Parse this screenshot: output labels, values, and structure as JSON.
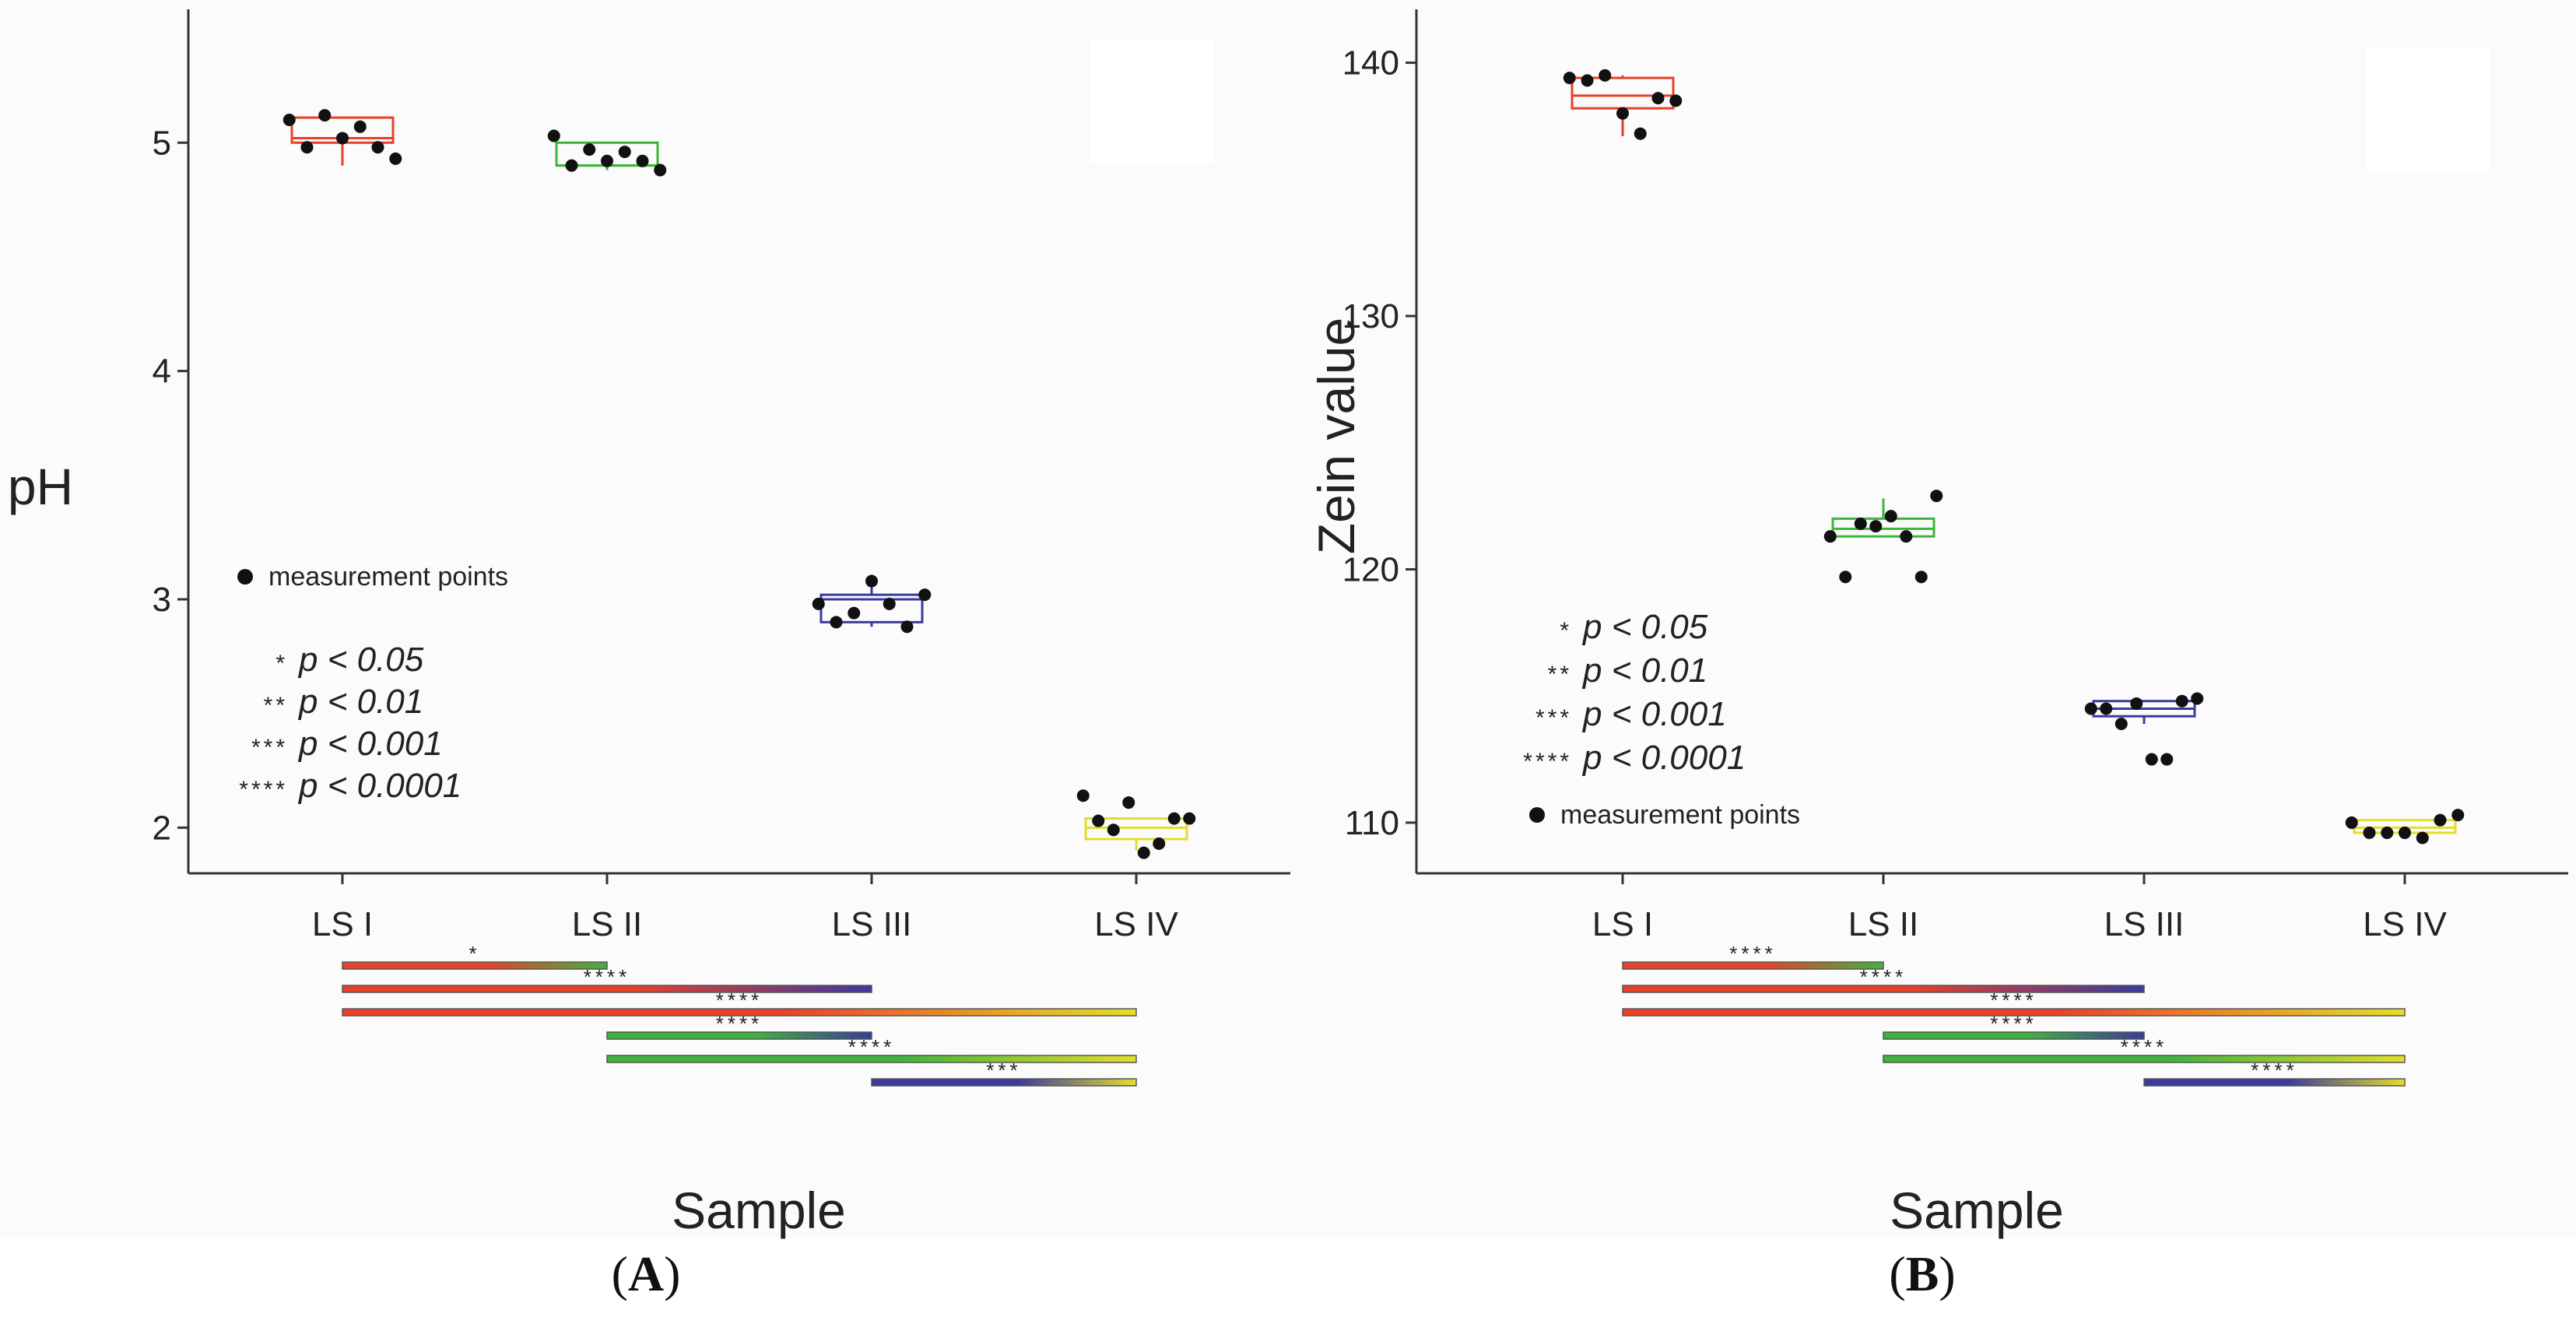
{
  "chart_data": [
    {
      "type": "box",
      "panel": "A",
      "xlabel": "Sample",
      "ylabel": "pH",
      "categories": [
        "LS I",
        "LS II",
        "LS III",
        "LS IV"
      ],
      "ylim": [
        1.8,
        5.55
      ],
      "yticks": [
        2,
        3,
        4,
        5
      ],
      "colors": [
        "#e8402a",
        "#3db53a",
        "#3b3a9e",
        "#e4dd2c"
      ],
      "boxes": [
        {
          "q1": 5.0,
          "median": 5.02,
          "q3": 5.11,
          "whisker_low": 4.9,
          "whisker_high": 5.11
        },
        {
          "q1": 4.9,
          "median": 4.9,
          "q3": 5.0,
          "whisker_low": 4.88,
          "whisker_high": 5.0
        },
        {
          "q1": 2.9,
          "median": 3.0,
          "q3": 3.02,
          "whisker_low": 2.88,
          "whisker_high": 3.1
        },
        {
          "q1": 1.95,
          "median": 2.0,
          "q3": 2.04,
          "whisker_low": 1.9,
          "whisker_high": 2.04
        }
      ],
      "points": [
        [
          5.1,
          4.98,
          5.12,
          5.02,
          5.07,
          4.98,
          4.93
        ],
        [
          5.03,
          4.9,
          4.97,
          4.92,
          4.96,
          4.92,
          4.88
        ],
        [
          2.98,
          2.9,
          2.94,
          3.08,
          2.98,
          2.88,
          3.02
        ],
        [
          2.14,
          2.03,
          1.99,
          2.11,
          1.89,
          1.93,
          2.04,
          2.04
        ]
      ],
      "legend": {
        "points_label": "measurement points",
        "items": [
          {
            "stars": "*",
            "text": "p < 0.05"
          },
          {
            "stars": "**",
            "text": "p < 0.01"
          },
          {
            "stars": "***",
            "text": "p < 0.001"
          },
          {
            "stars": "****",
            "text": "p < 0.0001"
          }
        ]
      },
      "comparisons": [
        {
          "from": 0,
          "to": 1,
          "label": "*"
        },
        {
          "from": 0,
          "to": 2,
          "label": "****"
        },
        {
          "from": 0,
          "to": 3,
          "label": "****"
        },
        {
          "from": 1,
          "to": 2,
          "label": "****"
        },
        {
          "from": 1,
          "to": 3,
          "label": "****"
        },
        {
          "from": 2,
          "to": 3,
          "label": "***"
        }
      ]
    },
    {
      "type": "box",
      "panel": "B",
      "xlabel": "Sample",
      "ylabel": "Zein value",
      "categories": [
        "LS I",
        "LS II",
        "LS III",
        "LS IV"
      ],
      "ylim": [
        108.0,
        141.8
      ],
      "yticks": [
        110,
        120,
        130,
        140
      ],
      "colors": [
        "#e8402a",
        "#3db53a",
        "#3b3a9e",
        "#e4dd2c"
      ],
      "boxes": [
        {
          "q1": 138.2,
          "median": 138.7,
          "q3": 139.4,
          "whisker_low": 137.1,
          "whisker_high": 139.5
        },
        {
          "q1": 121.3,
          "median": 121.6,
          "q3": 122.0,
          "whisker_low": 121.3,
          "whisker_high": 122.8
        },
        {
          "q1": 114.2,
          "median": 114.5,
          "q3": 114.8,
          "whisker_low": 113.9,
          "whisker_high": 114.8
        },
        {
          "q1": 109.6,
          "median": 109.8,
          "q3": 110.1,
          "whisker_low": 109.6,
          "whisker_high": 110.1
        }
      ],
      "points": [
        [
          139.4,
          139.3,
          139.5,
          138.0,
          137.2,
          138.6,
          138.5
        ],
        [
          121.3,
          119.7,
          121.8,
          121.7,
          122.1,
          121.3,
          119.7,
          122.9
        ],
        [
          114.5,
          114.5,
          113.9,
          114.7,
          112.5,
          112.5,
          114.8,
          114.9
        ],
        [
          110.0,
          109.6,
          109.6,
          109.6,
          109.4,
          110.1,
          110.3
        ]
      ],
      "legend": {
        "points_label": "measurement points",
        "items": [
          {
            "stars": "*",
            "text": "p < 0.05"
          },
          {
            "stars": "**",
            "text": "p < 0.01"
          },
          {
            "stars": "***",
            "text": "p < 0.001"
          },
          {
            "stars": "****",
            "text": "p < 0.0001"
          }
        ]
      },
      "comparisons": [
        {
          "from": 0,
          "to": 1,
          "label": "****"
        },
        {
          "from": 0,
          "to": 2,
          "label": "****"
        },
        {
          "from": 0,
          "to": 3,
          "label": "****"
        },
        {
          "from": 1,
          "to": 2,
          "label": "****"
        },
        {
          "from": 1,
          "to": 3,
          "label": "****"
        },
        {
          "from": 2,
          "to": 3,
          "label": "****"
        }
      ]
    }
  ],
  "panel_labels": {
    "a_prefix": "(",
    "a_letter": "A",
    "a_suffix": ")",
    "b_prefix": "(",
    "b_letter": "B",
    "b_suffix": ")"
  }
}
